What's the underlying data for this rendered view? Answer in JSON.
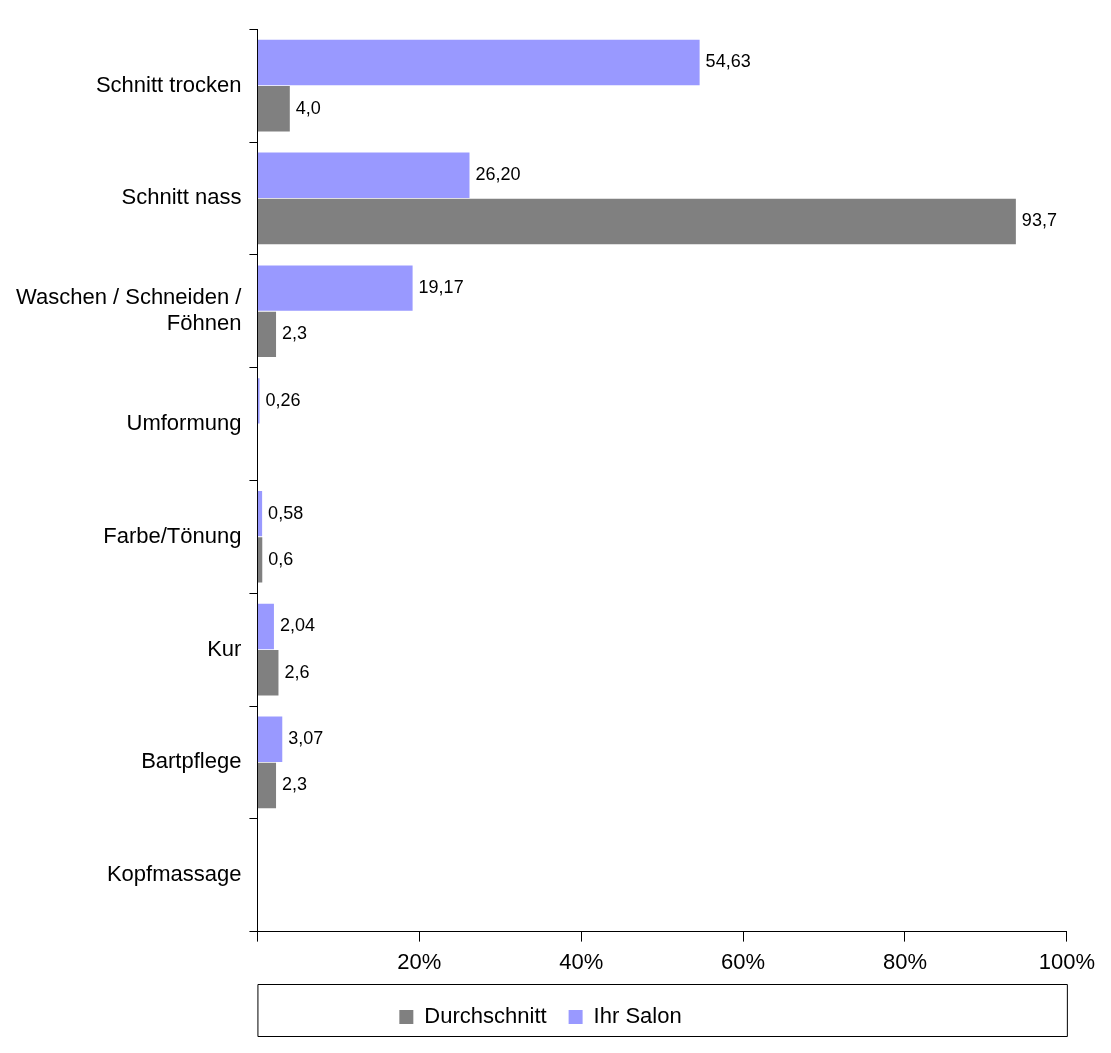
{
  "chart_data": {
    "type": "bar",
    "orientation": "horizontal",
    "categories": [
      "Schnitt trocken",
      "Schnitt nass",
      "Waschen / Schneiden / Föhnen",
      "Umformung",
      "Farbe/Tönung",
      "Kur",
      "Bartpflege",
      "Kopfmassage"
    ],
    "series": [
      {
        "name": "Ihr Salon",
        "color": "#9999ff",
        "values": [
          54.63,
          26.2,
          19.17,
          0.26,
          0.58,
          2.04,
          3.07,
          null
        ],
        "value_labels": [
          "54,63",
          "26,20",
          "19,17",
          "0,26",
          "0,58",
          "2,04",
          "3,07",
          null
        ]
      },
      {
        "name": "Durchschnitt",
        "color": "#808080",
        "values": [
          4.0,
          93.7,
          2.3,
          null,
          0.6,
          2.6,
          2.3,
          null
        ],
        "value_labels": [
          "4,0",
          "93,7",
          "2,3",
          null,
          "0,6",
          "2,6",
          "2,3",
          null
        ]
      }
    ],
    "xlim": [
      0,
      100
    ],
    "xticks": [
      {
        "value": 0,
        "label": null
      },
      {
        "value": 20,
        "label": "20%"
      },
      {
        "value": 40,
        "label": "40%"
      },
      {
        "value": 60,
        "label": "60%"
      },
      {
        "value": 80,
        "label": "80%"
      },
      {
        "value": 100,
        "label": "100%"
      }
    ],
    "grid": false,
    "legend": "bottom"
  }
}
